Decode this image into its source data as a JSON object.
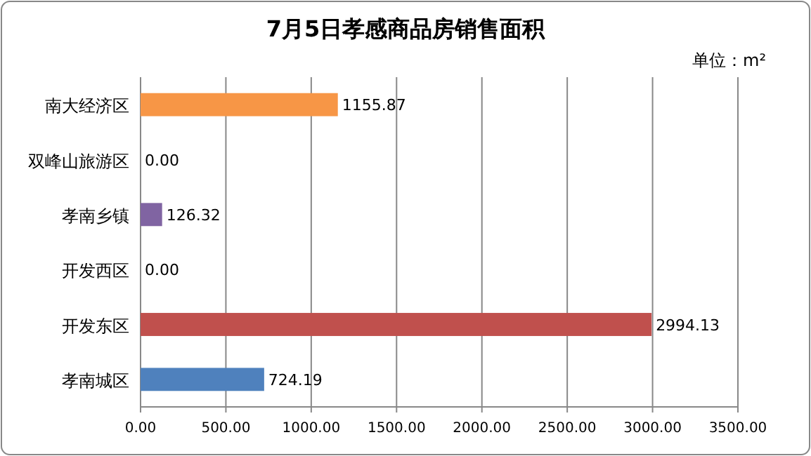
{
  "chart_data": {
    "type": "bar",
    "orientation": "horizontal",
    "title": "7月5日孝感商品房销售面积",
    "annotations": [
      "单位：m²"
    ],
    "categories": [
      "南大经济区",
      "双峰山旅游区",
      "孝南乡镇",
      "开发西区",
      "开发东区",
      "孝南城区"
    ],
    "values": [
      1155.87,
      0,
      126.32,
      0,
      2994.13,
      724.19
    ],
    "colors": [
      "#f79646",
      "#9bbb59",
      "#8064a2",
      "#4bacc6",
      "#c0504d",
      "#4f81bd"
    ],
    "value_labels": [
      "1155.87",
      "0.00",
      "126.32",
      "0.00",
      "2994.13",
      "724.19"
    ],
    "xlim": [
      0,
      3500
    ],
    "xticks": [
      {
        "value": 0,
        "label": "0.00"
      },
      {
        "value": 500,
        "label": "500.00"
      },
      {
        "value": 1000,
        "label": "1000.00"
      },
      {
        "value": 1500,
        "label": "1500.00"
      },
      {
        "value": 2000,
        "label": "2000.00"
      },
      {
        "value": 2500,
        "label": "2500.00"
      },
      {
        "value": 3000,
        "label": "3000.00"
      },
      {
        "value": 3500,
        "label": "3500.00"
      }
    ],
    "grid": "x"
  }
}
